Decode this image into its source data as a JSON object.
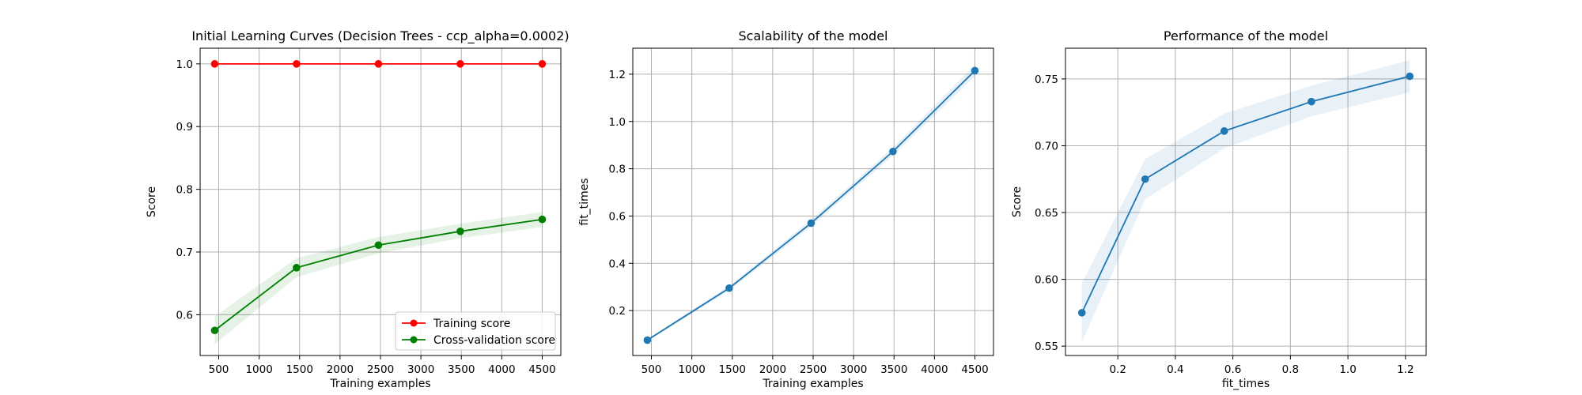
{
  "chart_data": [
    {
      "type": "line",
      "title": "Initial Learning Curves (Decision Trees - ccp_alpha=0.0002)",
      "xlabel": "Training examples",
      "ylabel": "Score",
      "xlim": [
        270,
        4730
      ],
      "ylim": [
        0.535,
        1.025
      ],
      "xticks": [
        500,
        1000,
        1500,
        2000,
        2500,
        3000,
        3500,
        4000,
        4500
      ],
      "yticks": [
        0.6,
        0.7,
        0.8,
        0.9,
        1.0
      ],
      "ytick_decimals": 1,
      "grid": true,
      "legend": "lower-right",
      "x": [
        450,
        1462,
        2475,
        3487,
        4500
      ],
      "series": [
        {
          "name": "Training score",
          "color": "#ff0000",
          "values": [
            1.0,
            1.0,
            1.0,
            1.0,
            1.0
          ],
          "band_low": [
            1.0,
            1.0,
            1.0,
            1.0,
            1.0
          ],
          "band_high": [
            1.0,
            1.0,
            1.0,
            1.0,
            1.0
          ]
        },
        {
          "name": "Cross-validation score",
          "color": "#008000",
          "values": [
            0.575,
            0.675,
            0.711,
            0.733,
            0.752
          ],
          "band_low": [
            0.553,
            0.66,
            0.698,
            0.722,
            0.74
          ],
          "band_high": [
            0.597,
            0.69,
            0.724,
            0.745,
            0.764
          ]
        }
      ]
    },
    {
      "type": "line",
      "title": "Scalability of the model",
      "xlabel": "Training examples",
      "ylabel": "fit_times",
      "xlim": [
        270,
        4730
      ],
      "ylim": [
        0.01,
        1.31
      ],
      "xticks": [
        500,
        1000,
        1500,
        2000,
        2500,
        3000,
        3500,
        4000,
        4500
      ],
      "yticks": [
        0.2,
        0.4,
        0.6,
        0.8,
        1.0,
        1.2
      ],
      "ytick_decimals": 1,
      "grid": true,
      "x": [
        450,
        1462,
        2475,
        3487,
        4500
      ],
      "series": [
        {
          "color": "#1f77b4",
          "values": [
            0.075,
            0.295,
            0.57,
            0.873,
            1.215
          ],
          "band_low": [
            0.07,
            0.285,
            0.556,
            0.855,
            1.19
          ],
          "band_high": [
            0.08,
            0.305,
            0.584,
            0.89,
            1.24
          ]
        }
      ]
    },
    {
      "type": "line",
      "title": "Performance of the model",
      "xlabel": "fit_times",
      "ylabel": "Score",
      "xlim": [
        0.018,
        1.272
      ],
      "ylim": [
        0.543,
        0.773
      ],
      "xticks": [
        0.2,
        0.4,
        0.6,
        0.8,
        1.0,
        1.2
      ],
      "yticks": [
        0.55,
        0.6,
        0.65,
        0.7,
        0.75
      ],
      "ytick_decimals": 2,
      "grid": true,
      "x": [
        0.075,
        0.295,
        0.57,
        0.873,
        1.215
      ],
      "series": [
        {
          "color": "#1f77b4",
          "values": [
            0.575,
            0.675,
            0.711,
            0.733,
            0.752
          ],
          "band_low": [
            0.553,
            0.66,
            0.698,
            0.722,
            0.74
          ],
          "band_high": [
            0.597,
            0.69,
            0.724,
            0.745,
            0.764
          ]
        }
      ]
    }
  ]
}
